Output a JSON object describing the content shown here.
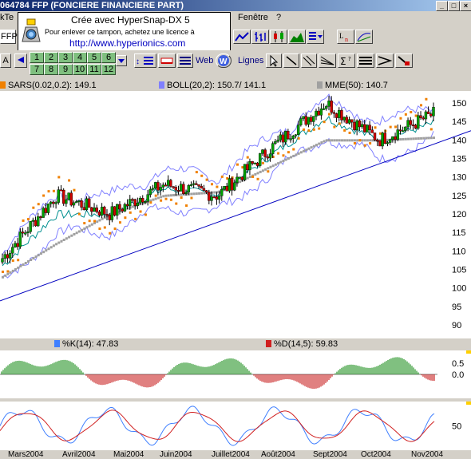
{
  "window": {
    "title": "064784  FFP (FONCIERE FINANCIERE PART)"
  },
  "menu": {
    "left_fragment": "kTe",
    "window_menu": "Fenêtre",
    "help_menu": "?"
  },
  "toolbar": {
    "symbol_fragment": "FFP",
    "a_label": "A",
    "number_buttons": [
      "1",
      "2",
      "3",
      "4",
      "5",
      "6",
      "7",
      "8",
      "9",
      "10",
      "11",
      "12"
    ],
    "web_label": "Web",
    "lignes_label": "Lignes"
  },
  "stamp": {
    "line1": "Crée avec HyperSnap-DX 5",
    "line2": "Pour enlever ce tampon, achetez une licence à",
    "line3": "http://www.hyperionics.com"
  },
  "legends": {
    "sars": "SARS(0.02,0.2): 149.1",
    "boll": "BOLL(20,2): 150.7/ 141.1",
    "mme": "MME(50): 140.7",
    "k": "%K(14): 47.83",
    "d": "%D(14,5): 59.83"
  },
  "colors": {
    "sars": "#f08000",
    "boll": "#8080ff",
    "mme": "#a0a0a0",
    "k": "#4080ff",
    "d": "#d02020",
    "up_candle": "#00a000",
    "down_candle": "#d00000",
    "trend": "#0000c0"
  },
  "price_axis": [
    "150",
    "145",
    "140",
    "135",
    "130",
    "125",
    "120",
    "115",
    "110",
    "105",
    "100",
    "95",
    "90"
  ],
  "osc_axis": [
    "0.5",
    "0.0"
  ],
  "stoch_axis": [
    "50"
  ],
  "months": [
    "Mars2004",
    "Avril2004",
    "Mai2004",
    "Juin2004",
    "Juillet2004",
    "Août2004",
    "Sept2004",
    "Oct2004",
    "Nov2004"
  ],
  "chart_data": {
    "type": "line",
    "title": "FFP (FONCIERE FINANCIERE PART)",
    "x": [
      "Mars2004",
      "Avril2004",
      "Mai2004",
      "Juin2004",
      "Juillet2004",
      "Août2004",
      "Sept2004",
      "Oct2004",
      "Nov2004"
    ],
    "series": [
      {
        "name": "FFP",
        "values": [
          108,
          125,
          120,
          128,
          125,
          138,
          150,
          140,
          147
        ]
      },
      {
        "name": "MME(50)",
        "values": [
          103,
          112,
          120,
          125,
          126,
          133,
          140,
          140,
          140.7
        ]
      }
    ],
    "ylim": [
      88,
      152
    ],
    "grid": false
  }
}
